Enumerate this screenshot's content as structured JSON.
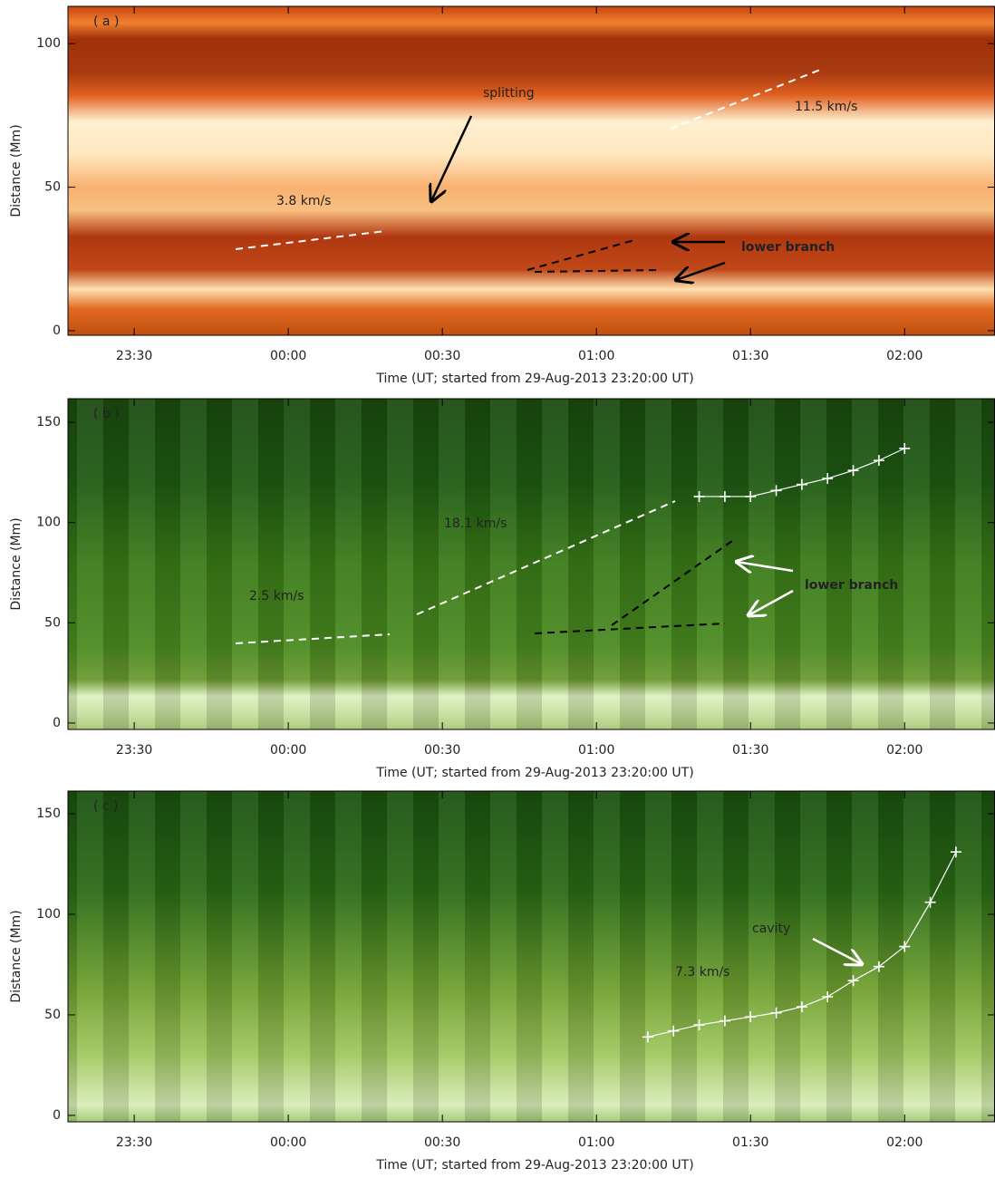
{
  "chart_data": [
    {
      "type": "timeslice",
      "panel_label": "( a )",
      "x_label": "Time (UT; started from 29-Aug-2013 23:20:00 UT)",
      "y_label": "Distance (Mm)",
      "xlim": [
        -2.9,
        177.6
      ],
      "xticks": [
        {
          "value": 10,
          "label": "23:30"
        },
        {
          "value": 40,
          "label": "00:00"
        },
        {
          "value": 70,
          "label": "00:30"
        },
        {
          "value": 100,
          "label": "01:00"
        },
        {
          "value": 130,
          "label": "01:30"
        },
        {
          "value": 160,
          "label": "02:00"
        }
      ],
      "ylim": [
        -1.6,
        113
      ],
      "yticks": [
        0,
        50,
        100
      ],
      "annotations": [
        "splitting",
        "3.8 km/s",
        "11.5 km/s",
        "lower branch"
      ]
    },
    {
      "type": "timeslice",
      "panel_label": "( b )",
      "x_label": "Time (UT; started from 29-Aug-2013 23:20:00 UT)",
      "y_label": "Distance (Mm)",
      "xlim": [
        -2.9,
        177.6
      ],
      "xticks": [
        {
          "value": 10,
          "label": "23:30"
        },
        {
          "value": 40,
          "label": "00:00"
        },
        {
          "value": 70,
          "label": "00:30"
        },
        {
          "value": 100,
          "label": "01:00"
        },
        {
          "value": 130,
          "label": "01:30"
        },
        {
          "value": 160,
          "label": "02:00"
        }
      ],
      "ylim": [
        -3.2,
        161.8
      ],
      "yticks": [
        0,
        50,
        100,
        150
      ],
      "x": [
        120,
        125,
        130,
        135,
        140,
        145,
        150,
        155,
        160
      ],
      "values": [
        113,
        113,
        113,
        116,
        119,
        122,
        126,
        131,
        137
      ],
      "color": "#ffffff",
      "annotations": [
        "18.1 km/s",
        "2.5 km/s",
        "lower branch"
      ]
    },
    {
      "type": "timeslice",
      "panel_label": "( c )",
      "x_label": "Time (UT; started from 29-Aug-2013 23:20:00 UT)",
      "y_label": "Distance (Mm)",
      "xlim": [
        -2.9,
        177.6
      ],
      "xticks": [
        {
          "value": 10,
          "label": "23:30"
        },
        {
          "value": 40,
          "label": "00:00"
        },
        {
          "value": 70,
          "label": "00:30"
        },
        {
          "value": 100,
          "label": "01:00"
        },
        {
          "value": 130,
          "label": "01:30"
        },
        {
          "value": 160,
          "label": "02:00"
        }
      ],
      "ylim": [
        -3.2,
        161.3
      ],
      "yticks": [
        0,
        50,
        100,
        150
      ],
      "x": [
        110,
        115,
        120,
        125,
        130,
        135,
        140,
        145,
        150,
        155,
        160,
        165,
        170
      ],
      "values": [
        39,
        42,
        45,
        47,
        49,
        51,
        54,
        59,
        67,
        74,
        84,
        106,
        131
      ],
      "color": "#ffffff",
      "annotations": [
        "cavity",
        "7.3 km/s"
      ]
    }
  ]
}
